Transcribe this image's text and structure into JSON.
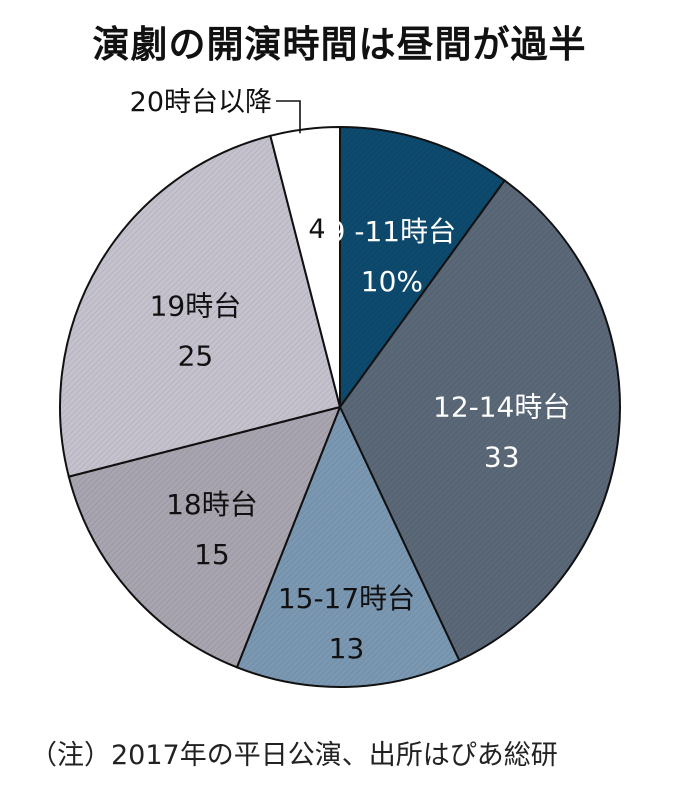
{
  "title": "演劇の開演時間は昼間が過半",
  "note": "（注）2017年の平日公演、出所はぴあ総研",
  "chart_data": {
    "type": "pie",
    "title": "演劇の開演時間は昼間が過半",
    "start_angle_deg": 0,
    "direction": "clockwise",
    "slices": [
      {
        "category": "9 -11時台",
        "value": 10,
        "value_label": "10%",
        "color": "#0d4a6e",
        "text_color": "#ffffff"
      },
      {
        "category": "12-14時台",
        "value": 33,
        "value_label": "33",
        "color": "#5a6878",
        "text_color": "#ffffff"
      },
      {
        "category": "15-17時台",
        "value": 13,
        "value_label": "13",
        "color": "#7b98b3",
        "text_color": "#111111"
      },
      {
        "category": "18時台",
        "value": 15,
        "value_label": "15",
        "color": "#a9a5b0",
        "text_color": "#111111"
      },
      {
        "category": "19時台",
        "value": 25,
        "value_label": "25",
        "color": "#c5c2ce",
        "text_color": "#111111"
      },
      {
        "category": "20時台以降",
        "value": 4,
        "value_label": "4",
        "color": "#ffffff",
        "text_color": "#111111"
      }
    ]
  }
}
